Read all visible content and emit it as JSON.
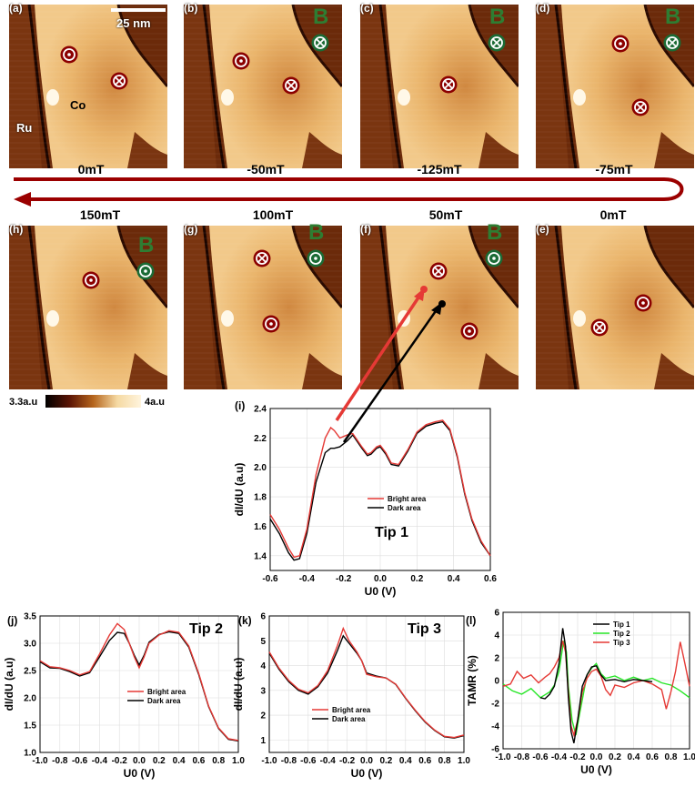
{
  "stm_panels": [
    {
      "id": "a",
      "label": "(a)",
      "field": "0mT",
      "B": ""
    },
    {
      "id": "b",
      "label": "(b)",
      "field": "-50mT",
      "B": "B"
    },
    {
      "id": "c",
      "label": "(c)",
      "field": "-125mT",
      "B": "B"
    },
    {
      "id": "d",
      "label": "(d)",
      "field": "-75mT",
      "B": "B"
    },
    {
      "id": "h",
      "label": "(h)",
      "field": "150mT",
      "B": "B"
    },
    {
      "id": "g",
      "label": "(g)",
      "field": "100mT",
      "B": "B"
    },
    {
      "id": "f",
      "label": "(f)",
      "field": "50mT",
      "B": "B"
    },
    {
      "id": "e",
      "label": "(e)",
      "field": "0mT",
      "B": ""
    }
  ],
  "scale_bar": "25 nm",
  "material_labels": {
    "ru": "Ru",
    "co": "Co"
  },
  "colorbar": {
    "min": "3.3a.u",
    "max": "4a.u",
    "colors": [
      "#000000",
      "#5a1405",
      "#b5651d",
      "#f5d9a2",
      "#fff4dd"
    ]
  },
  "colors": {
    "bright": "#e53935",
    "dark": "#000000",
    "tip1": "#000000",
    "tip2": "#27e627",
    "tip3": "#e53935",
    "marker": "#8b0000",
    "b_marker": "#1b6b35",
    "arrow": "#9b0000"
  },
  "chart_data": [
    {
      "id": "i",
      "type": "line",
      "panel_label": "(i)",
      "annotation": "Tip 1",
      "xlabel": "U0 (V)",
      "ylabel": "dI/dU (a.u)",
      "xlim": [
        -0.6,
        0.6
      ],
      "ylim": [
        1.3,
        2.4
      ],
      "xticks": [
        "-0.6",
        "-0.4",
        "-0.2",
        "0.0",
        "0.2",
        "0.4",
        "0.6"
      ],
      "yticks": [
        "1.4",
        "1.6",
        "1.8",
        "2.0",
        "2.2",
        "2.4"
      ],
      "series": [
        {
          "name": "Bright area",
          "x": [
            -0.6,
            -0.55,
            -0.5,
            -0.47,
            -0.44,
            -0.4,
            -0.35,
            -0.3,
            -0.27,
            -0.25,
            -0.22,
            -0.18,
            -0.15,
            -0.1,
            -0.07,
            -0.05,
            -0.02,
            0.0,
            0.03,
            0.06,
            0.1,
            0.15,
            0.2,
            0.25,
            0.3,
            0.34,
            0.38,
            0.42,
            0.46,
            0.5,
            0.55,
            0.6
          ],
          "y": [
            1.68,
            1.58,
            1.45,
            1.39,
            1.4,
            1.58,
            1.95,
            2.2,
            2.27,
            2.25,
            2.2,
            2.22,
            2.23,
            2.14,
            2.09,
            2.1,
            2.14,
            2.15,
            2.1,
            2.03,
            2.02,
            2.12,
            2.24,
            2.29,
            2.31,
            2.32,
            2.26,
            2.08,
            1.83,
            1.65,
            1.5,
            1.4
          ]
        },
        {
          "name": "Dark area",
          "x": [
            -0.6,
            -0.55,
            -0.5,
            -0.47,
            -0.44,
            -0.4,
            -0.35,
            -0.3,
            -0.27,
            -0.25,
            -0.22,
            -0.18,
            -0.15,
            -0.1,
            -0.07,
            -0.05,
            -0.02,
            0.0,
            0.03,
            0.06,
            0.1,
            0.15,
            0.2,
            0.25,
            0.3,
            0.34,
            0.38,
            0.42,
            0.46,
            0.5,
            0.55,
            0.6
          ],
          "y": [
            1.65,
            1.55,
            1.42,
            1.37,
            1.38,
            1.55,
            1.9,
            2.1,
            2.13,
            2.13,
            2.14,
            2.18,
            2.22,
            2.13,
            2.08,
            2.09,
            2.13,
            2.14,
            2.09,
            2.02,
            2.01,
            2.11,
            2.23,
            2.28,
            2.3,
            2.31,
            2.25,
            2.07,
            1.82,
            1.64,
            1.49,
            1.4
          ]
        }
      ]
    },
    {
      "id": "j",
      "type": "line",
      "panel_label": "(j)",
      "annotation": "Tip 2",
      "xlabel": "U0 (V)",
      "ylabel": "dI/dU (a.u)",
      "xlim": [
        -1.0,
        1.0
      ],
      "ylim": [
        1.0,
        3.5
      ],
      "xticks": [
        "-1.0",
        "-0.8",
        "-0.6",
        "-0.4",
        "-0.2",
        "0.0",
        "0.2",
        "0.4",
        "0.6",
        "0.8",
        "1.0"
      ],
      "yticks": [
        "1.0",
        "1.5",
        "2.0",
        "2.5",
        "3.0",
        "3.5"
      ],
      "series": [
        {
          "name": "Bright area",
          "x": [
            -1.0,
            -0.9,
            -0.8,
            -0.7,
            -0.6,
            -0.5,
            -0.4,
            -0.3,
            -0.22,
            -0.15,
            -0.1,
            -0.05,
            0.0,
            0.05,
            0.1,
            0.2,
            0.3,
            0.4,
            0.5,
            0.6,
            0.7,
            0.8,
            0.9,
            1.0
          ],
          "y": [
            2.68,
            2.57,
            2.55,
            2.5,
            2.42,
            2.48,
            2.8,
            3.15,
            3.36,
            3.25,
            3.0,
            2.75,
            2.55,
            2.75,
            3.0,
            3.15,
            3.23,
            3.2,
            2.95,
            2.45,
            1.85,
            1.45,
            1.25,
            1.22
          ]
        },
        {
          "name": "Dark area",
          "x": [
            -1.0,
            -0.9,
            -0.8,
            -0.7,
            -0.6,
            -0.5,
            -0.4,
            -0.3,
            -0.22,
            -0.15,
            -0.1,
            -0.05,
            0.0,
            0.05,
            0.1,
            0.2,
            0.3,
            0.4,
            0.5,
            0.6,
            0.7,
            0.8,
            0.9,
            1.0
          ],
          "y": [
            2.66,
            2.55,
            2.54,
            2.48,
            2.4,
            2.46,
            2.75,
            3.05,
            3.2,
            3.18,
            3.0,
            2.78,
            2.6,
            2.78,
            3.02,
            3.16,
            3.21,
            3.18,
            2.93,
            2.43,
            1.84,
            1.44,
            1.24,
            1.21
          ]
        }
      ]
    },
    {
      "id": "k",
      "type": "line",
      "panel_label": "(k)",
      "annotation": "Tip 3",
      "xlabel": "U0 (V)",
      "ylabel": "dI/dU (a.u)",
      "xlim": [
        -1.0,
        1.0
      ],
      "ylim": [
        0.5,
        6.0
      ],
      "xticks": [
        "-1.0",
        "-0.8",
        "-0.6",
        "-0.4",
        "-0.2",
        "0.0",
        "0.2",
        "0.4",
        "0.6",
        "0.8",
        "1.0"
      ],
      "yticks": [
        "1",
        "2",
        "3",
        "4",
        "5",
        "6"
      ],
      "series": [
        {
          "name": "Bright area",
          "x": [
            -1.0,
            -0.9,
            -0.8,
            -0.7,
            -0.6,
            -0.5,
            -0.4,
            -0.3,
            -0.24,
            -0.18,
            -0.1,
            -0.05,
            0.0,
            0.1,
            0.2,
            0.3,
            0.4,
            0.5,
            0.6,
            0.7,
            0.8,
            0.9,
            1.0
          ],
          "y": [
            4.55,
            3.9,
            3.4,
            3.05,
            2.9,
            3.2,
            3.8,
            4.8,
            5.5,
            5.0,
            4.55,
            4.2,
            3.65,
            3.55,
            3.5,
            3.25,
            2.7,
            2.2,
            1.75,
            1.4,
            1.15,
            1.1,
            1.2
          ]
        },
        {
          "name": "Dark area",
          "x": [
            -1.0,
            -0.9,
            -0.8,
            -0.7,
            -0.6,
            -0.5,
            -0.4,
            -0.3,
            -0.24,
            -0.18,
            -0.1,
            -0.05,
            0.0,
            0.1,
            0.2,
            0.3,
            0.4,
            0.5,
            0.6,
            0.7,
            0.8,
            0.9,
            1.0
          ],
          "y": [
            4.5,
            3.85,
            3.35,
            3.0,
            2.85,
            3.15,
            3.7,
            4.6,
            5.2,
            4.9,
            4.5,
            4.2,
            3.7,
            3.58,
            3.5,
            3.24,
            2.68,
            2.18,
            1.73,
            1.38,
            1.13,
            1.08,
            1.18
          ]
        }
      ]
    },
    {
      "id": "l",
      "type": "line",
      "panel_label": "(l)",
      "annotation": "",
      "xlabel": "U0 (V)",
      "ylabel": "TAMR (%)",
      "xlim": [
        -1.0,
        1.0
      ],
      "ylim": [
        -6,
        6
      ],
      "xticks": [
        "-1.0",
        "-0.8",
        "-0.6",
        "-0.4",
        "-0.2",
        "0.0",
        "0.2",
        "0.4",
        "0.6",
        "0.8",
        "1.0"
      ],
      "yticks": [
        "-6",
        "-4",
        "-2",
        "0",
        "2",
        "4",
        "6"
      ],
      "series": [
        {
          "name": "Tip 1",
          "x": [
            -0.6,
            -0.55,
            -0.5,
            -0.45,
            -0.4,
            -0.36,
            -0.33,
            -0.3,
            -0.27,
            -0.24,
            -0.2,
            -0.15,
            -0.1,
            -0.05,
            0.0,
            0.05,
            0.1,
            0.2,
            0.3,
            0.4,
            0.5,
            0.6
          ],
          "y": [
            -1.5,
            -1.6,
            -1.2,
            -0.5,
            1.5,
            4.6,
            3.0,
            -1.5,
            -4.5,
            -5.5,
            -3.5,
            -0.5,
            0.5,
            1.2,
            1.3,
            0.5,
            0.0,
            0.1,
            -0.1,
            0.1,
            0.0,
            -0.1
          ]
        },
        {
          "name": "Tip 2",
          "x": [
            -1.0,
            -0.9,
            -0.8,
            -0.7,
            -0.6,
            -0.5,
            -0.45,
            -0.4,
            -0.35,
            -0.32,
            -0.3,
            -0.26,
            -0.22,
            -0.18,
            -0.1,
            -0.05,
            0.0,
            0.05,
            0.1,
            0.2,
            0.3,
            0.4,
            0.5,
            0.6,
            0.7,
            0.8,
            0.9,
            1.0
          ],
          "y": [
            -0.3,
            -0.9,
            -1.2,
            -0.7,
            -1.5,
            -1.0,
            -0.4,
            0.8,
            3.5,
            2.5,
            -0.5,
            -3.5,
            -4.8,
            -3.0,
            0.5,
            1.1,
            1.5,
            0.6,
            0.2,
            0.4,
            0.0,
            0.3,
            0.0,
            0.2,
            -0.2,
            -0.4,
            -0.9,
            -1.5
          ]
        },
        {
          "name": "Tip 3",
          "x": [
            -1.0,
            -0.92,
            -0.85,
            -0.78,
            -0.7,
            -0.62,
            -0.55,
            -0.5,
            -0.45,
            -0.4,
            -0.36,
            -0.33,
            -0.3,
            -0.27,
            -0.24,
            -0.2,
            -0.15,
            -0.1,
            -0.05,
            0.0,
            0.05,
            0.1,
            0.15,
            0.2,
            0.3,
            0.4,
            0.5,
            0.6,
            0.7,
            0.75,
            0.8,
            0.85,
            0.9,
            0.95,
            1.0
          ],
          "y": [
            -0.5,
            -0.3,
            0.8,
            0.2,
            0.5,
            -0.2,
            0.3,
            0.6,
            1.2,
            2.0,
            3.5,
            2.5,
            -1.0,
            -4.0,
            -4.8,
            -3.5,
            -1.0,
            0.2,
            0.8,
            1.0,
            0.4,
            -0.8,
            -1.3,
            -0.4,
            -0.6,
            -0.2,
            0.0,
            -0.3,
            -0.8,
            -2.5,
            -1.0,
            0.8,
            3.4,
            1.5,
            -0.5
          ]
        }
      ]
    }
  ]
}
